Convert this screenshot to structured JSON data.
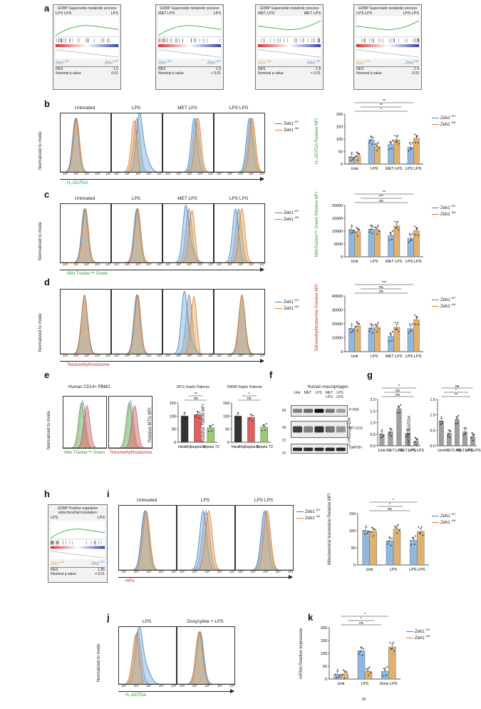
{
  "colors": {
    "wt": "#8fb8df",
    "wt_line": "#3d84c8",
    "dm": "#e0b070",
    "dm_line": "#e8782e",
    "grey": "#9e9e9e",
    "green": "#2b9a3c",
    "red": "#d12e2e"
  },
  "panel_letters": {
    "a": "a",
    "b": "b",
    "c": "c",
    "d": "d",
    "e": "e",
    "f": "f",
    "g": "g",
    "h": "h",
    "i": "i",
    "j": "j",
    "k": "k"
  },
  "gsea_a": [
    {
      "title": "GOBP Superoxide metabolic process",
      "left": "LPS LPS",
      "right": "LPS",
      "gene_left": "Zeb1 ",
      "gene_left_sup": "WT",
      "gene_right": "Zeb1 ",
      "gene_right_sup": "WT",
      "nes_label": "NES",
      "nes": "1.6",
      "p_label": "Nominal p value",
      "p": "0.01"
    },
    {
      "title": "GOBP Superoxide metabolic process",
      "left": "MET LPS",
      "right": "LPS",
      "gene_left": "Zeb1 ",
      "gene_left_sup": "WT",
      "gene_right": "Zeb1 ",
      "gene_right_sup": "WT",
      "nes_label": "NES",
      "nes": "1.9",
      "p_label": "Nominal p value",
      "p": "< 0.01"
    },
    {
      "title": "GOBP Superoxide metabolic process",
      "left": "MET LPS",
      "right": "MET LPS",
      "gene_left": "Zeb1 ",
      "gene_left_sup": "ΔM",
      "gene_right": "Zeb1 ",
      "gene_right_sup": "WT",
      "nes_label": "NES",
      "nes": "- 1.8",
      "p_label": "Nominal p value",
      "p": "< 0.01"
    },
    {
      "title": "GOBP Superoxide metabolic process",
      "left": "LPS LPS",
      "right": "LPS LPS",
      "gene_left": "Zeb1 ",
      "gene_left_sup": "ΔM",
      "gene_right": "Zeb1 ",
      "gene_right_sup": "WT",
      "nes_label": "NES",
      "nes": "- 1.4",
      "p_label": "Nominal p value",
      "p": "0.03"
    }
  ],
  "gsea_h": {
    "title": "GOBP Positive regulation mitochondrial translation",
    "left": "LPS",
    "right": "LPS",
    "gene_left": "Zeb1 ",
    "gene_left_sup": "ΔM",
    "gene_right": "Zeb1 ",
    "gene_right_sup": "WT",
    "nes_label": "NES",
    "nes": "1.86",
    "p_label": "Nominal p value",
    "p": "< 0.01"
  },
  "legend": {
    "wt": "Zeb1 ",
    "wt_sup": "WT",
    "dm": "Zeb1 ",
    "dm_sup": "ΔM"
  },
  "b": {
    "titles": [
      "Untreated",
      "LPS",
      "MET  LPS",
      "LPS  LPS"
    ],
    "ylabel": "Normalized to mode",
    "xlabel": "H₂-DCFDA",
    "bar_ylabel": "H₂-DCFDA Relative MFI",
    "yticks": [
      "0",
      "50",
      "100",
      "150",
      "200"
    ],
    "xcats": [
      "Untr",
      "LPS",
      "MET LPS",
      "LPS LPS"
    ],
    "sig": [
      "*",
      "**",
      "**",
      "*",
      "*",
      "ns"
    ]
  },
  "c": {
    "titles": [
      "Untreated",
      "LPS",
      "MET  LPS",
      "LPS  LPS"
    ],
    "ylabel": "Normalized to mode",
    "xlabel": "Mito Tracker™ Green",
    "bar_ylabel": "MitoTracker™ Green Relative MFI",
    "yticks": [
      "0",
      "5000",
      "10000",
      "15000",
      "20000"
    ],
    "xcats": [
      "Untr",
      "LPS",
      "MET LPS",
      "LPS LPS"
    ],
    "sig": [
      "ns",
      "***",
      "**",
      "ns",
      "ns",
      "*",
      "ns*"
    ]
  },
  "d": {
    "titles": [
      "",
      "",
      "",
      ""
    ],
    "ylabel": "Normalized to mode",
    "xlabel": "Tetramethylrhodamine",
    "bar_ylabel": "Tetramethylrhodamine Relative MFI",
    "yticks": [
      "0",
      "10000",
      "20000",
      "30000",
      "40000"
    ],
    "xcats": [
      "Untr",
      "LPS",
      "MET LPS",
      "LPS LPS"
    ],
    "sig": [
      "ns",
      "ns",
      "***",
      "ns",
      "***",
      "ns",
      "ns"
    ]
  },
  "e": {
    "title": "Human CD14+ PBMC",
    "ylabel": "Normalized to mode",
    "x1": "Mito Tracker™ Green",
    "x2": "Tetramethylrhodamine",
    "mtg_title": "MTG Septic Patients",
    "tmrm_title": "TMRM Septic Patients",
    "mtg_ylabel": "Relative MTG MFI",
    "tmrm_ylabel": "Relative TMRM MFI",
    "cats": [
      "Healthy",
      "Sepsis 0",
      "Sepsis 72"
    ],
    "sig1": [
      "ns",
      "**"
    ],
    "sig2": [
      "ns",
      "*",
      "*"
    ]
  },
  "f": {
    "title": "Human macrophages",
    "lanes": [
      "Untr",
      "MET",
      "LPS",
      "MET LPS",
      "LPS LPS"
    ],
    "bands": [
      "P-P65",
      "MT-CO1",
      "GAPDH"
    ],
    "mw": [
      "65",
      "49",
      "37",
      "37"
    ]
  },
  "g": {
    "y1": "P-P65/GAPDH",
    "y2": "mtCO1/GAPDH",
    "cats": [
      "Untr",
      "MET",
      "LPS",
      "MET LPS",
      "LPS LPS"
    ],
    "sig": [
      "ns",
      "ns",
      "*",
      "*",
      "ns",
      "**",
      "*",
      "ns",
      "ns",
      "ns"
    ]
  },
  "i": {
    "titles": [
      "Untreated",
      "LPS",
      "LPS  LPS"
    ],
    "ylabel": "Normalized to mode",
    "xlabel": "HPG",
    "bar_ylabel": "Mitochondrial translation Relative MFI",
    "yticks": [
      "0",
      "50",
      "100",
      "150"
    ],
    "xcats": [
      "Untr",
      "LPS",
      "LPS LPS"
    ],
    "sig": [
      "ns",
      "*",
      "*",
      "**",
      "ns",
      "ns"
    ]
  },
  "j": {
    "titles": [
      "LPS",
      "Doxycyline + LPS"
    ],
    "ylabel": "Normalized to mode",
    "xlabel": "H₂-DCFDA"
  },
  "k": {
    "ylabel": "mRNA Relative expression",
    "xcats": [
      "Untr",
      "LPS",
      "Doxy LPS"
    ],
    "gene": "Il6",
    "yticks": [
      "0",
      "50",
      "100",
      "150",
      "200"
    ],
    "sig": [
      "ns",
      "*",
      "*",
      "*",
      "*"
    ]
  },
  "chart_data": [
    {
      "type": "bar",
      "panel": "b",
      "categories": [
        "Untr",
        "LPS",
        "MET LPS",
        "LPS LPS"
      ],
      "series": [
        {
          "name": "Zeb1 WT",
          "values": [
            28,
            97,
            78,
            68
          ]
        },
        {
          "name": "Zeb1 ΔM",
          "values": [
            33,
            70,
            97,
            103
          ]
        }
      ],
      "ylim": [
        0,
        200
      ]
    },
    {
      "type": "bar",
      "panel": "c",
      "categories": [
        "Untr",
        "LPS",
        "MET LPS",
        "LPS LPS"
      ],
      "series": [
        {
          "name": "Zeb1 WT",
          "values": [
            10500,
            10800,
            8300,
            7200
          ]
        },
        {
          "name": "Zeb1 ΔM",
          "values": [
            9800,
            10500,
            12000,
            10200
          ]
        }
      ],
      "ylim": [
        0,
        20000
      ]
    },
    {
      "type": "bar",
      "panel": "d",
      "categories": [
        "Untr",
        "LPS",
        "MET LPS",
        "LPS LPS"
      ],
      "series": [
        {
          "name": "Zeb1 WT",
          "values": [
            16500,
            17000,
            11000,
            16500
          ]
        },
        {
          "name": "Zeb1 ΔM",
          "values": [
            18500,
            17500,
            17500,
            23000
          ]
        }
      ],
      "ylim": [
        0,
        40000
      ]
    },
    {
      "type": "bar",
      "panel": "e-mtg",
      "categories": [
        "Healthy",
        "Sepsis 0",
        "Sepsis 72"
      ],
      "values": [
        100,
        106,
        55
      ],
      "ylim": [
        0,
        150
      ]
    },
    {
      "type": "bar",
      "panel": "e-tmrm",
      "categories": [
        "Healthy",
        "Sepsis 0",
        "Sepsis 72"
      ],
      "values": [
        100,
        95,
        58
      ],
      "ylim": [
        0,
        150
      ]
    },
    {
      "type": "bar",
      "panel": "g-pp65",
      "categories": [
        "Untr",
        "MET",
        "LPS",
        "MET LPS",
        "LPS LPS"
      ],
      "values": [
        0.5,
        0.6,
        1.6,
        0.55,
        0.2
      ],
      "ylim": [
        0,
        2
      ]
    },
    {
      "type": "bar",
      "panel": "g-mtco1",
      "categories": [
        "Untr",
        "MET",
        "LPS",
        "MET LPS",
        "LPS LPS"
      ],
      "values": [
        0.8,
        0.4,
        0.85,
        0.45,
        0.3
      ],
      "ylim": [
        0,
        1.5
      ]
    },
    {
      "type": "bar",
      "panel": "i",
      "categories": [
        "Untr",
        "LPS",
        "LPS LPS"
      ],
      "series": [
        {
          "name": "Zeb1 WT",
          "values": [
            100,
            70,
            72
          ]
        },
        {
          "name": "Zeb1 ΔM",
          "values": [
            98,
            105,
            98
          ]
        }
      ],
      "ylim": [
        0,
        150
      ]
    },
    {
      "type": "bar",
      "panel": "k",
      "categories": [
        "Untr",
        "LPS",
        "Doxy LPS"
      ],
      "series": [
        {
          "name": "Zeb1 WT",
          "values": [
            18,
            110,
            30
          ]
        },
        {
          "name": "Zeb1 ΔM",
          "values": [
            20,
            30,
            125
          ]
        }
      ],
      "ylim": [
        0,
        200
      ]
    }
  ]
}
